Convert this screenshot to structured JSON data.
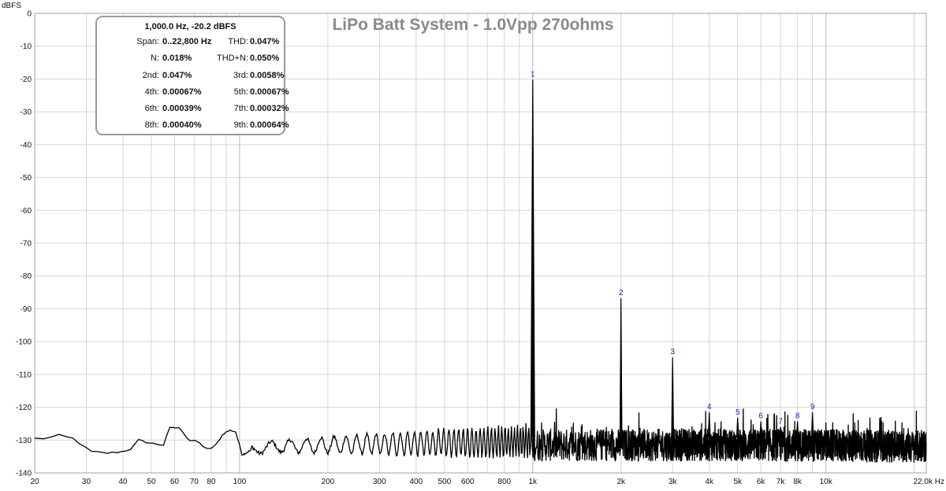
{
  "chart_data": {
    "type": "line",
    "title": "LiPo Batt System - 1.0Vpp 270ohms",
    "ylabel": "dBFS",
    "xlabel": "Hz",
    "x_scale": "log",
    "xlim": [
      20,
      22000
    ],
    "ylim": [
      -140,
      0
    ],
    "grid": true,
    "y_ticks": [
      "0",
      "-10",
      "-20",
      "-30",
      "-40",
      "-50",
      "-60",
      "-70",
      "-80",
      "-90",
      "-100",
      "-110",
      "-120",
      "-130",
      "-140"
    ],
    "x_tick_labels": [
      {
        "x": 20,
        "label": "20"
      },
      {
        "x": 30,
        "label": "30"
      },
      {
        "x": 40,
        "label": "40"
      },
      {
        "x": 50,
        "label": "50"
      },
      {
        "x": 60,
        "label": "60"
      },
      {
        "x": 70,
        "label": "70"
      },
      {
        "x": 80,
        "label": "80"
      },
      {
        "x": 100,
        "label": "100"
      },
      {
        "x": 200,
        "label": "200"
      },
      {
        "x": 300,
        "label": "300"
      },
      {
        "x": 400,
        "label": "400"
      },
      {
        "x": 500,
        "label": "500"
      },
      {
        "x": 600,
        "label": "600"
      },
      {
        "x": 800,
        "label": "800"
      },
      {
        "x": 1000,
        "label": "1k"
      },
      {
        "x": 2000,
        "label": "2k"
      },
      {
        "x": 3000,
        "label": "3k"
      },
      {
        "x": 4000,
        "label": "4k"
      },
      {
        "x": 5000,
        "label": "5k"
      },
      {
        "x": 6000,
        "label": "6k"
      },
      {
        "x": 7000,
        "label": "7k"
      },
      {
        "x": 8000,
        "label": "8k"
      },
      {
        "x": 10000,
        "label": "10k"
      },
      {
        "x": 22000,
        "label": "22.0k Hz"
      }
    ],
    "harmonics": [
      {
        "label": "1",
        "x": 1000,
        "y": -20.2
      },
      {
        "label": "2",
        "x": 2000,
        "y": -86.8
      },
      {
        "label": "3",
        "x": 3000,
        "y": -104.8
      },
      {
        "label": "4",
        "x": 4000,
        "y": -121.5
      },
      {
        "label": "5",
        "x": 5000,
        "y": -123.2
      },
      {
        "label": "6",
        "x": 6000,
        "y": -124.3
      },
      {
        "label": "7",
        "x": 7000,
        "y": -126.0
      },
      {
        "label": "8",
        "x": 8000,
        "y": -124.3
      },
      {
        "label": "9",
        "x": 9000,
        "y": -121.5
      }
    ],
    "noise_floor_profile": [
      {
        "x": 20,
        "y": -129.5
      },
      {
        "x": 22,
        "y": -129.5
      },
      {
        "x": 24,
        "y": -128.5
      },
      {
        "x": 27,
        "y": -129.5
      },
      {
        "x": 29,
        "y": -131.5
      },
      {
        "x": 31,
        "y": -133.5
      },
      {
        "x": 35,
        "y": -134
      },
      {
        "x": 40,
        "y": -133.5
      },
      {
        "x": 43,
        "y": -132.5
      },
      {
        "x": 45,
        "y": -130
      },
      {
        "x": 50,
        "y": -131
      },
      {
        "x": 55,
        "y": -131.5
      },
      {
        "x": 58,
        "y": -126
      },
      {
        "x": 63,
        "y": -126.5
      },
      {
        "x": 67,
        "y": -130
      },
      {
        "x": 72,
        "y": -130.5
      },
      {
        "x": 78,
        "y": -133
      },
      {
        "x": 83,
        "y": -131.5
      },
      {
        "x": 88,
        "y": -128
      },
      {
        "x": 93,
        "y": -127
      },
      {
        "x": 97,
        "y": -127.5
      },
      {
        "x": 102,
        "y": -134.5
      },
      {
        "x": 110,
        "y": -133
      },
      {
        "x": 130,
        "y": -132
      },
      {
        "x": 200,
        "y": -131.5
      },
      {
        "x": 400,
        "y": -131
      },
      {
        "x": 900,
        "y": -130.5
      },
      {
        "x": 2000,
        "y": -130.5
      },
      {
        "x": 6000,
        "y": -130.5
      },
      {
        "x": 22000,
        "y": -131
      }
    ]
  },
  "stats": {
    "header": "1,000.0 Hz, -20.2 dBFS",
    "rows": [
      {
        "l1": "Span:",
        "v1": "0..22,800 Hz",
        "l2": "THD:",
        "v2": "0.047%"
      },
      {
        "l1": "N:",
        "v1": "0.018%",
        "l2": "THD+N:",
        "v2": "0.050%"
      },
      {
        "l1": "2nd:",
        "v1": "0.047%",
        "l2": "3rd:",
        "v2": "0.0058%"
      },
      {
        "l1": "4th:",
        "v1": "0.00067%",
        "l2": "5th:",
        "v2": "0.00067%"
      },
      {
        "l1": "6th:",
        "v1": "0.00039%",
        "l2": "7th:",
        "v2": "0.00032%"
      },
      {
        "l1": "8th:",
        "v1": "0.00040%",
        "l2": "9th:",
        "v2": "0.00064%"
      }
    ]
  },
  "colors": {
    "trace": "#000000",
    "grid": "#d4d4d4",
    "frame": "#a0a0a0",
    "title": "#8a8a8a",
    "harmonic_label": "#1c1ccc"
  }
}
